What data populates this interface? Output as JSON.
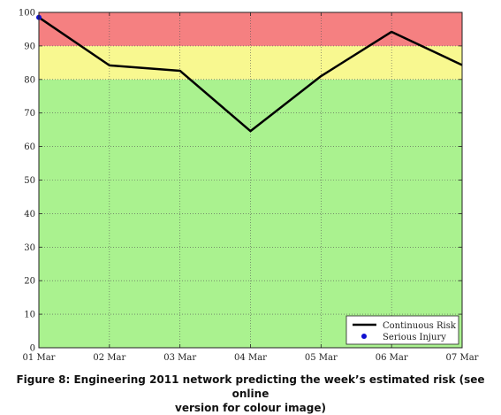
{
  "caption": {
    "line1": "Figure 8: Engineering 2011 network predicting the week’s estimated risk (see online",
    "line2": "version for colour image)"
  },
  "chart_data": {
    "type": "line",
    "categories": [
      "01 Mar",
      "02 Mar",
      "03 Mar",
      "04 Mar",
      "05 Mar",
      "06 Mar",
      "07 Mar"
    ],
    "ylim": [
      0,
      100
    ],
    "yticks": [
      "0",
      "10",
      "20",
      "30",
      "40",
      "50",
      "60",
      "70",
      "80",
      "90",
      "100"
    ],
    "grid": true,
    "legend_position": "bottom-right",
    "bands": [
      {
        "from": 0,
        "to": 80,
        "color": "#aaf28f"
      },
      {
        "from": 80,
        "to": 90,
        "color": "#f8f890"
      },
      {
        "from": 90,
        "to": 100,
        "color": "#f58081"
      }
    ],
    "series": [
      {
        "name": "Continuous Risk",
        "color": "#000000",
        "values": [
          98.5,
          84.2,
          82.6,
          64.6,
          81.0,
          94.2,
          84.3
        ]
      },
      {
        "name": "Serious Injury",
        "color": "#1010d0",
        "marker": "dot",
        "points": [
          {
            "x": "01 Mar",
            "y": 98.5
          }
        ]
      }
    ]
  }
}
